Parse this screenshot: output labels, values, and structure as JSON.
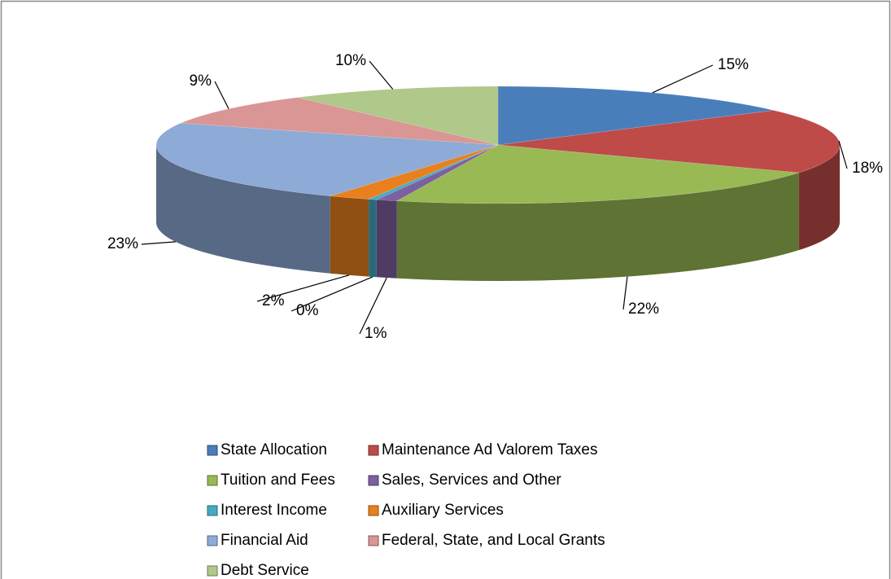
{
  "chart_data": {
    "type": "pie",
    "categories": [
      "State Allocation",
      "Maintenance Ad Valorem Taxes",
      "Tuition and Fees",
      "Sales, Services and Other",
      "Interest Income",
      "Auxiliary Services",
      "Financial Aid",
      "Federal, State, and Local Grants",
      "Debt Service"
    ],
    "values": [
      15,
      18,
      22,
      1,
      0.4,
      2,
      23,
      9,
      10
    ],
    "value_labels": [
      "15%",
      "18%",
      "22%",
      "1%",
      "0%",
      "2%",
      "23%",
      "9%",
      "10%"
    ],
    "colors": [
      "#4a7ebb",
      "#be4b48",
      "#98b954",
      "#7d60a0",
      "#46aac5",
      "#e8801f",
      "#8eaad6",
      "#d99694",
      "#b0c88a"
    ],
    "legend": "bottom"
  }
}
